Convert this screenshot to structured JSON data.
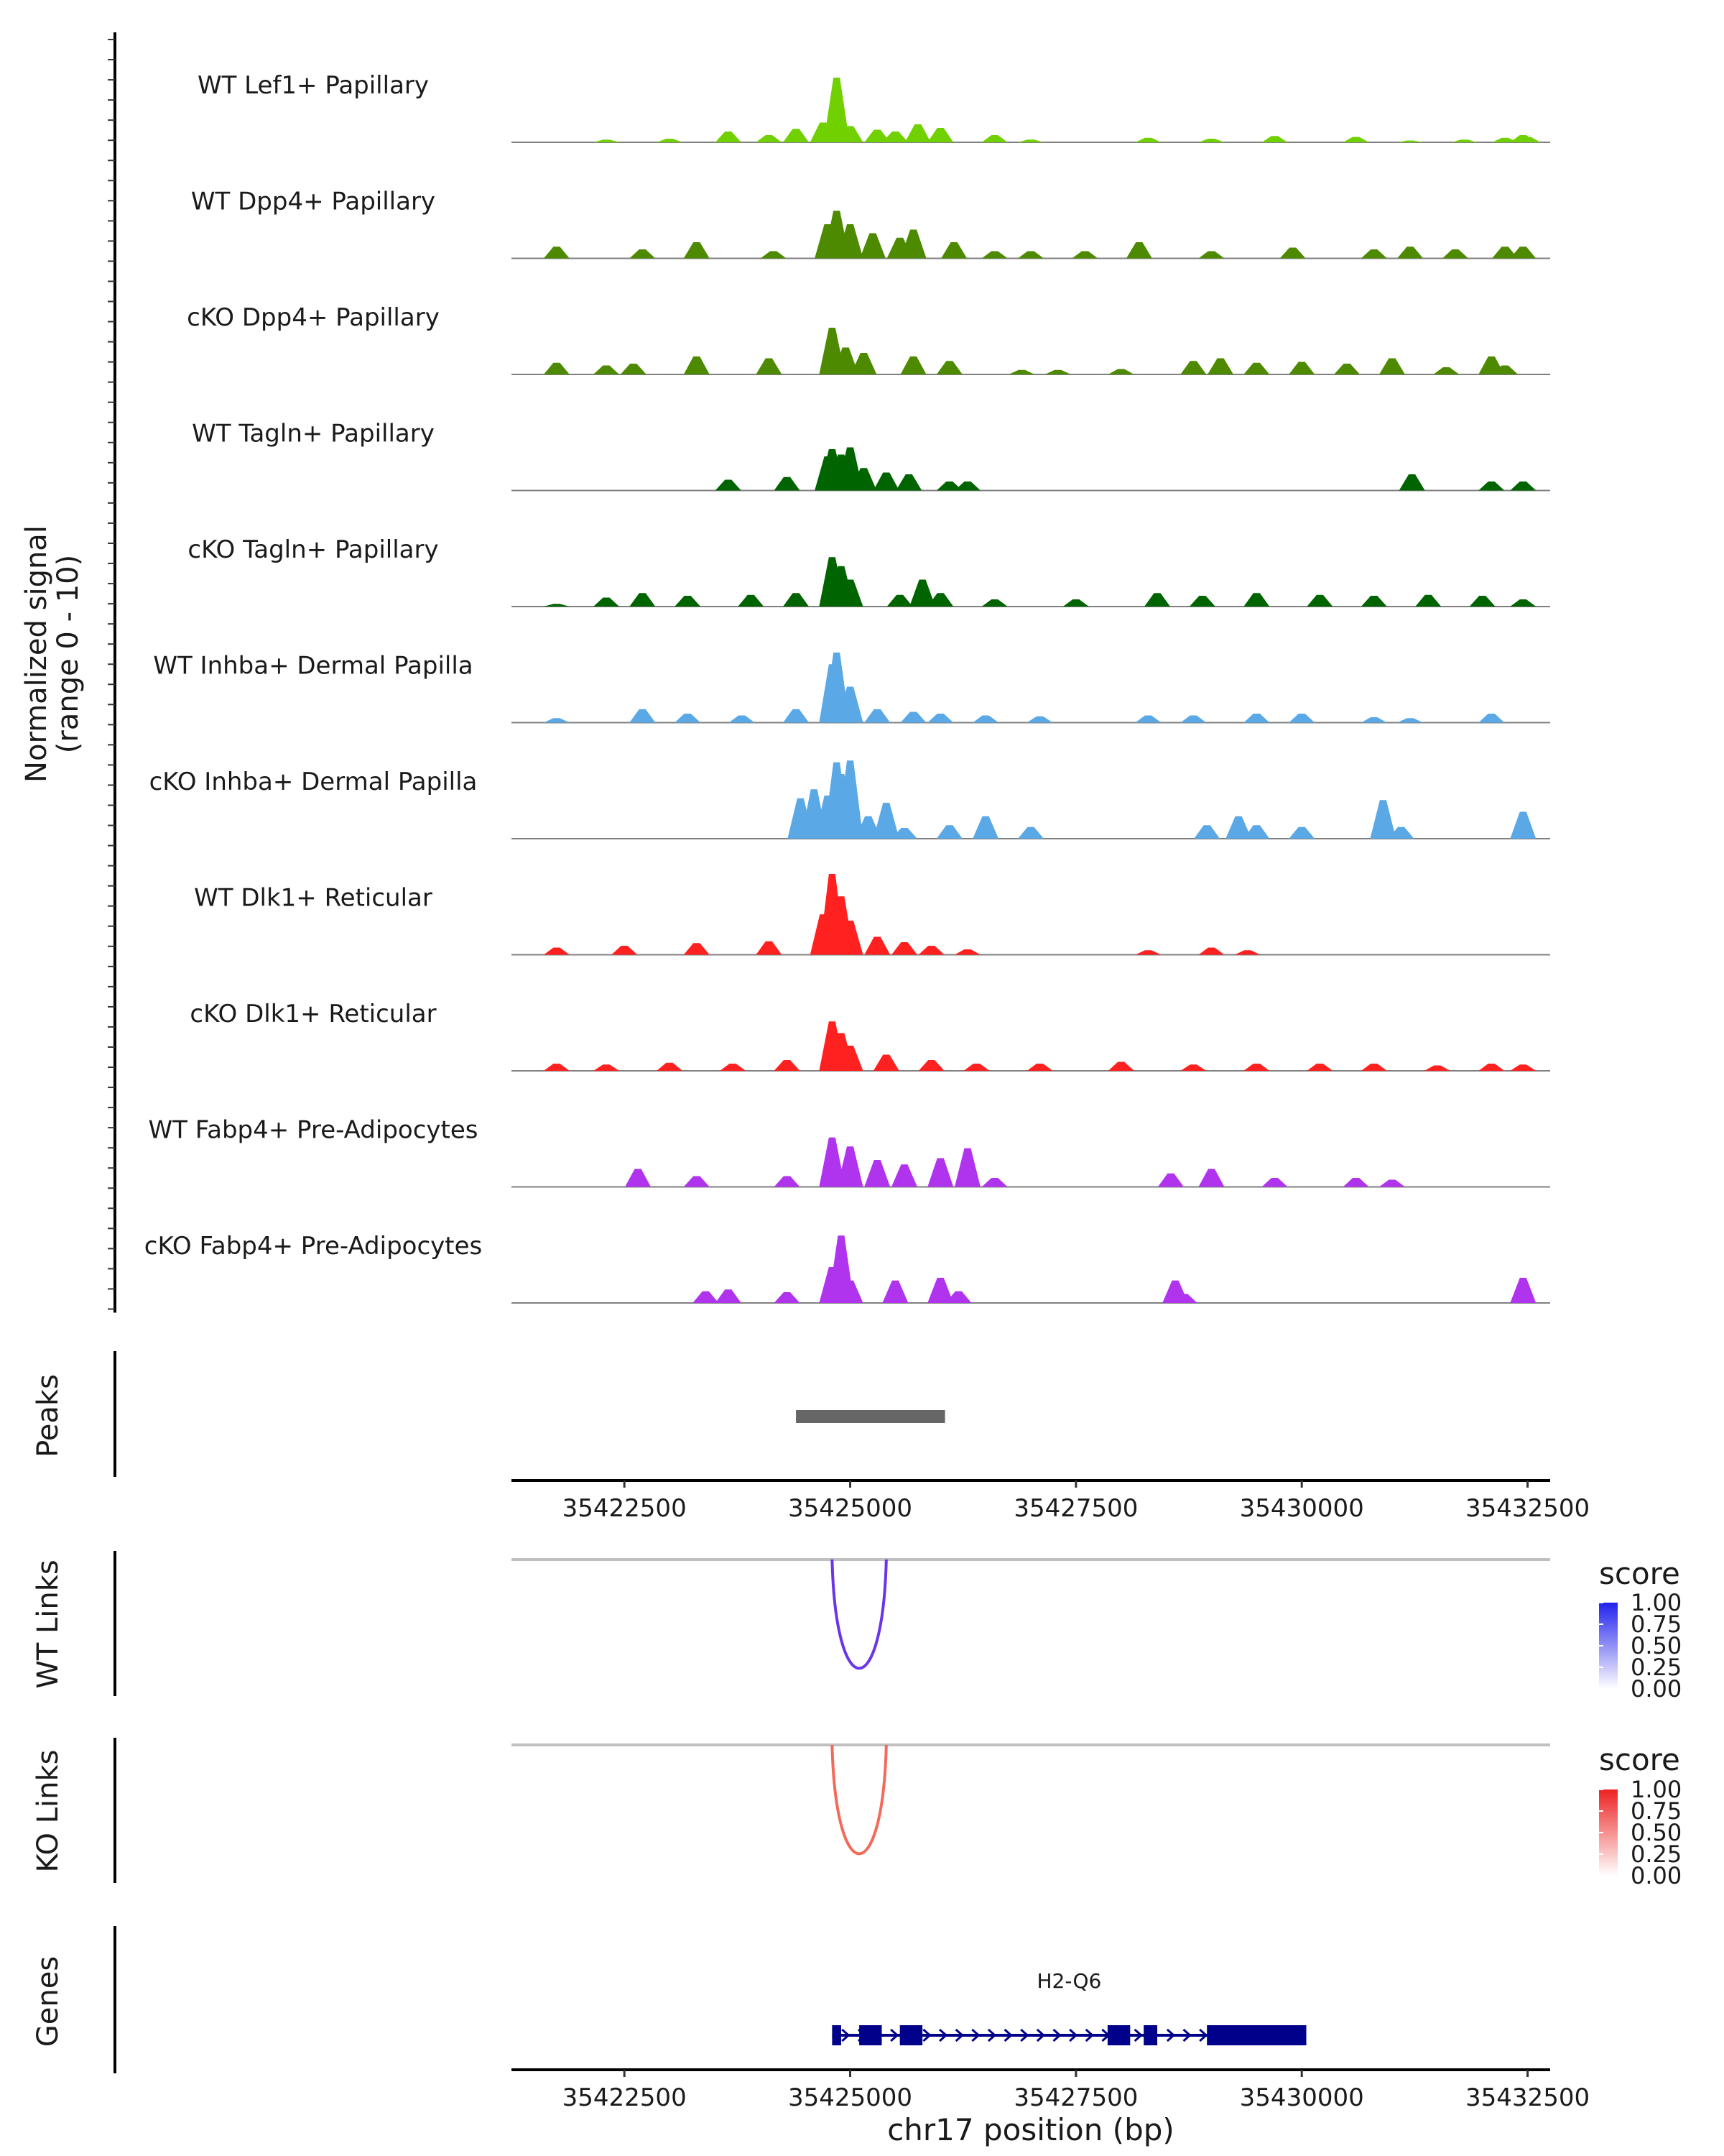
{
  "chart_data": {
    "type": "area",
    "title": "",
    "region": {
      "chrom": "chr17",
      "start": 35421250,
      "end": 35432750
    },
    "xlabel": "chr17 position (bp)",
    "x_ticks": [
      35422500,
      35425000,
      35427500,
      35430000,
      35432500
    ],
    "x_tick_labels": [
      "35422500",
      "35425000",
      "35427500",
      "35430000",
      "35432500"
    ],
    "coverage": {
      "ylabel": "Normalized signal\n(range 0 - 10)",
      "ylim": [
        0,
        10
      ],
      "tracks": [
        {
          "name": "WT Lef1+ Papillary",
          "color": "#70d000",
          "x": [
            35421750,
            35422300,
            35423000,
            35423650,
            35424100,
            35424400,
            35424700,
            35424850,
            35425000,
            35425300,
            35425500,
            35425750,
            35426000,
            35426600,
            35427000,
            35427500,
            35428300,
            35429000,
            35429700,
            35430600,
            35431200,
            35431800,
            35432250,
            35432450,
            35432500
          ],
          "y": [
            0.0,
            0.3,
            0.4,
            1.2,
            0.8,
            1.5,
            2.2,
            7.2,
            1.8,
            1.4,
            1.2,
            2.0,
            1.6,
            0.8,
            0.3,
            0.0,
            0.5,
            0.4,
            0.7,
            0.6,
            0.2,
            0.3,
            0.5,
            0.8,
            0.6
          ]
        },
        {
          "name": "WT Dpp4+ Papillary",
          "color": "#4d8a00",
          "x": [
            35421750,
            35422700,
            35423300,
            35424150,
            35424750,
            35424850,
            35425000,
            35425250,
            35425550,
            35425700,
            35426150,
            35426600,
            35427000,
            35427600,
            35428200,
            35429000,
            35429900,
            35430800,
            35431200,
            35431700,
            35432250,
            35432450
          ],
          "y": [
            1.3,
            1.0,
            1.8,
            0.8,
            3.8,
            5.3,
            3.8,
            2.8,
            2.3,
            3.2,
            1.8,
            0.8,
            0.8,
            0.8,
            1.8,
            0.8,
            1.2,
            1.0,
            1.3,
            1.0,
            1.3,
            1.3
          ]
        },
        {
          "name": "cKO Dpp4+ Papillary",
          "color": "#4d8a00",
          "x": [
            35421750,
            35422300,
            35422600,
            35423300,
            35424100,
            35424800,
            35424950,
            35425150,
            35425700,
            35426100,
            35426900,
            35427300,
            35428000,
            35428800,
            35429100,
            35429500,
            35430000,
            35430500,
            35431000,
            35431600,
            35432100,
            35432250
          ],
          "y": [
            1.3,
            1.0,
            1.2,
            2.0,
            1.8,
            5.2,
            3.0,
            2.4,
            2.0,
            1.5,
            0.5,
            0.5,
            0.6,
            1.5,
            1.8,
            1.3,
            1.4,
            1.2,
            1.8,
            0.8,
            2.0,
            1.0
          ]
        },
        {
          "name": "WT Tagln+ Papillary",
          "color": "#006400",
          "x": [
            35423650,
            35424300,
            35424750,
            35424800,
            35424900,
            35425000,
            35425150,
            35425400,
            35425650,
            35426100,
            35426300,
            35431220,
            35432100,
            35432450
          ],
          "y": [
            1.2,
            1.5,
            3.8,
            4.6,
            4.0,
            4.8,
            2.5,
            2.0,
            1.8,
            1.0,
            1.0,
            1.8,
            1.0,
            1.0
          ]
        },
        {
          "name": "cKO Tagln+ Papillary",
          "color": "#006400",
          "x": [
            35421750,
            35422300,
            35422700,
            35423200,
            35423900,
            35424400,
            35424800,
            35424900,
            35425000,
            35425550,
            35425800,
            35426000,
            35426600,
            35427500,
            35428400,
            35428900,
            35429500,
            35430200,
            35430800,
            35431400,
            35432000,
            35432450
          ],
          "y": [
            0.3,
            1.0,
            1.5,
            1.2,
            1.3,
            1.5,
            5.5,
            4.5,
            3.0,
            1.3,
            3.0,
            1.5,
            0.8,
            0.8,
            1.5,
            1.2,
            1.5,
            1.3,
            1.2,
            1.3,
            1.2,
            0.8
          ]
        },
        {
          "name": "WT Inhba+ Dermal Papilla",
          "color": "#5ba8e6",
          "x": [
            35421750,
            35422700,
            35423200,
            35423800,
            35424400,
            35424800,
            35424850,
            35425000,
            35425300,
            35425700,
            35426000,
            35426500,
            35427100,
            35428300,
            35428800,
            35429500,
            35430000,
            35430800,
            35431200,
            35432100
          ],
          "y": [
            0.5,
            1.5,
            1.0,
            0.8,
            1.5,
            6.5,
            7.8,
            4.0,
            1.5,
            1.2,
            1.0,
            0.8,
            0.7,
            0.8,
            0.8,
            1.0,
            1.0,
            0.6,
            0.5,
            1.0
          ]
        },
        {
          "name": "cKO Inhba+ Dermal Papilla",
          "color": "#5ba8e6",
          "x": [
            35424450,
            35424600,
            35424750,
            35424850,
            35424900,
            35425000,
            35425200,
            35425400,
            35425600,
            35426100,
            35426500,
            35427000,
            35428950,
            35429300,
            35429500,
            35430000,
            35430900,
            35431100,
            35432450
          ],
          "y": [
            4.5,
            5.5,
            4.8,
            8.5,
            7.2,
            8.7,
            2.5,
            4.0,
            1.2,
            1.5,
            2.5,
            1.3,
            1.5,
            2.5,
            1.5,
            1.3,
            4.3,
            1.3,
            3.0
          ]
        },
        {
          "name": "WT Dlk1+ Reticular",
          "color": "#ff2020",
          "x": [
            35421750,
            35422500,
            35423300,
            35424100,
            35424700,
            35424800,
            35424900,
            35425000,
            35425300,
            35425600,
            35425900,
            35426300,
            35428300,
            35429000,
            35429400
          ],
          "y": [
            0.8,
            1.0,
            1.3,
            1.5,
            4.5,
            9.0,
            6.5,
            3.8,
            2.0,
            1.4,
            1.0,
            0.6,
            0.5,
            0.8,
            0.5
          ]
        },
        {
          "name": "cKO Dlk1+ Reticular",
          "color": "#ff2020",
          "x": [
            35421750,
            35422300,
            35423000,
            35423700,
            35424300,
            35424800,
            35424900,
            35425000,
            35425400,
            35425900,
            35426400,
            35427100,
            35428000,
            35428800,
            35429500,
            35430200,
            35430800,
            35431500,
            35432100,
            35432450
          ],
          "y": [
            0.8,
            0.7,
            0.9,
            0.8,
            1.2,
            5.5,
            4.2,
            2.8,
            1.8,
            1.2,
            0.8,
            0.8,
            1.0,
            0.7,
            0.8,
            0.8,
            0.8,
            0.6,
            0.8,
            0.7
          ]
        },
        {
          "name": "WT Fabp4+ Pre-Adipocytes",
          "color": "#b033ee",
          "x": [
            35422650,
            35423300,
            35424300,
            35424800,
            35425000,
            35425300,
            35425600,
            35426000,
            35426300,
            35426600,
            35428550,
            35429000,
            35429700,
            35430600,
            35431000
          ],
          "y": [
            2.0,
            1.2,
            1.2,
            5.5,
            4.5,
            3.0,
            2.5,
            3.2,
            4.3,
            1.0,
            1.5,
            2.0,
            1.0,
            1.0,
            0.8
          ]
        },
        {
          "name": "cKO Fabp4+ Pre-Adipocytes",
          "color": "#b033ee",
          "x": [
            35423400,
            35423650,
            35424300,
            35424800,
            35424900,
            35425000,
            35425500,
            35426000,
            35426200,
            35428600,
            35428700,
            35432450
          ],
          "y": [
            1.3,
            1.5,
            1.2,
            4.0,
            7.5,
            2.5,
            2.5,
            2.8,
            1.3,
            2.5,
            1.0,
            2.8
          ]
        }
      ]
    },
    "peaks": {
      "label": "Peaks",
      "intervals": [
        [
          35424400,
          35426050
        ]
      ]
    },
    "links": [
      {
        "label": "WT Links",
        "color": "#6a35e8",
        "start": 35424800,
        "end": 35425400,
        "score": 0.85,
        "legend": {
          "title": "score",
          "ticks": [
            "1.00",
            "0.75",
            "0.50",
            "0.25",
            "0.00"
          ],
          "low_color": "#ffffff",
          "high_color": "#2222ee"
        }
      },
      {
        "label": "KO Links",
        "color": "#f46a5a",
        "start": 35424800,
        "end": 35425400,
        "score": 0.85,
        "legend": {
          "title": "score",
          "ticks": [
            "1.00",
            "0.75",
            "0.50",
            "0.25",
            "0.00"
          ],
          "low_color": "#ffffff",
          "high_color": "#ee2222"
        }
      }
    ],
    "genes": {
      "label": "Genes",
      "items": [
        {
          "name": "H2-Q6",
          "start": 35424800,
          "end": 35430050,
          "strand": "+",
          "exons": [
            [
              35424800,
              35424900
            ],
            [
              35425100,
              35425350
            ],
            [
              35425550,
              35425800
            ],
            [
              35427850,
              35428100
            ],
            [
              35428250,
              35428400
            ],
            [
              35428950,
              35430050
            ]
          ]
        }
      ]
    }
  }
}
